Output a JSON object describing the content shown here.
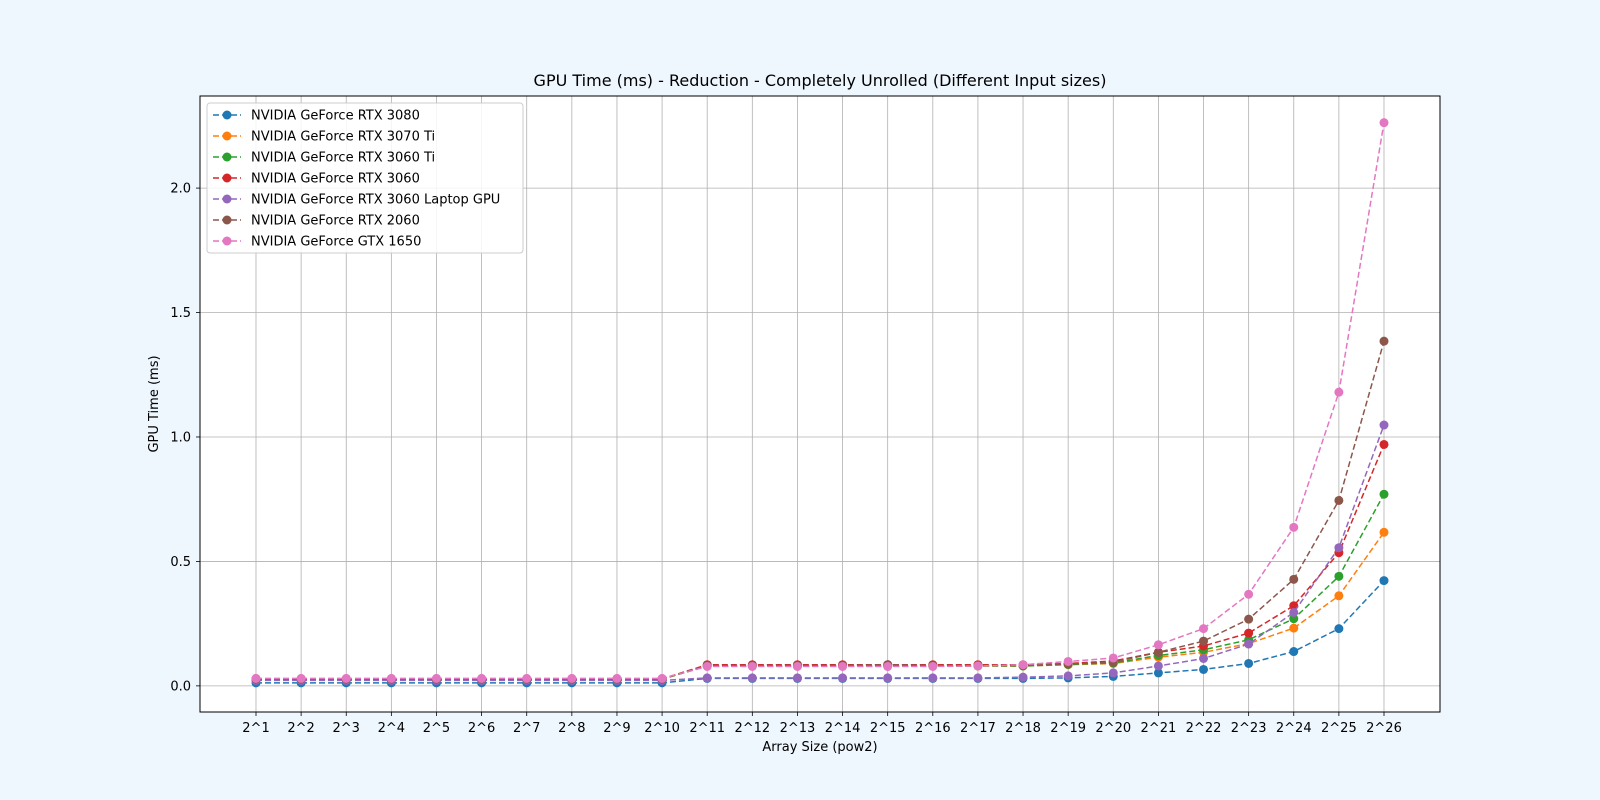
{
  "chart_data": {
    "type": "line",
    "title": "GPU Time (ms) - Reduction - Completely Unrolled (Different Input sizes)",
    "xlabel": "Array Size (pow2)",
    "ylabel": "GPU Time (ms)",
    "categories": [
      "2^1",
      "2^2",
      "2^3",
      "2^4",
      "2^5",
      "2^6",
      "2^7",
      "2^8",
      "2^9",
      "2^10",
      "2^11",
      "2^12",
      "2^13",
      "2^14",
      "2^15",
      "2^16",
      "2^17",
      "2^18",
      "2^19",
      "2^20",
      "2^21",
      "2^22",
      "2^23",
      "2^24",
      "2^25",
      "2^26"
    ],
    "ylim": [
      -0.105,
      2.37
    ],
    "yticks": [
      0.0,
      0.5,
      1.0,
      1.5,
      2.0
    ],
    "ytick_labels": [
      "0.0",
      "0.5",
      "1.0",
      "1.5",
      "2.0"
    ],
    "grid": true,
    "line_style": "dashed",
    "marker": "circle",
    "legend_position": "upper-left",
    "series": [
      {
        "name": "NVIDIA GeForce RTX 3080",
        "color": "#1f77b4",
        "values": [
          0.012,
          0.012,
          0.012,
          0.012,
          0.012,
          0.012,
          0.012,
          0.012,
          0.012,
          0.012,
          0.03,
          0.03,
          0.03,
          0.03,
          0.03,
          0.03,
          0.03,
          0.03,
          0.032,
          0.038,
          0.052,
          0.066,
          0.09,
          0.138,
          0.23,
          0.423
        ]
      },
      {
        "name": "NVIDIA GeForce RTX 3070 Ti",
        "color": "#ff7f0e",
        "values": [
          0.027,
          0.027,
          0.027,
          0.027,
          0.027,
          0.027,
          0.027,
          0.027,
          0.027,
          0.027,
          0.08,
          0.08,
          0.08,
          0.08,
          0.08,
          0.08,
          0.08,
          0.08,
          0.085,
          0.09,
          0.115,
          0.135,
          0.17,
          0.232,
          0.362,
          0.617
        ]
      },
      {
        "name": "NVIDIA GeForce RTX 3060 Ti",
        "color": "#2ca02c",
        "values": [
          0.027,
          0.027,
          0.027,
          0.027,
          0.027,
          0.027,
          0.027,
          0.027,
          0.027,
          0.027,
          0.08,
          0.08,
          0.08,
          0.08,
          0.08,
          0.08,
          0.08,
          0.08,
          0.086,
          0.092,
          0.122,
          0.145,
          0.185,
          0.27,
          0.44,
          0.77
        ]
      },
      {
        "name": "NVIDIA GeForce RTX 3060",
        "color": "#d62728",
        "values": [
          0.028,
          0.028,
          0.028,
          0.028,
          0.028,
          0.028,
          0.028,
          0.028,
          0.028,
          0.028,
          0.085,
          0.085,
          0.085,
          0.085,
          0.085,
          0.085,
          0.085,
          0.085,
          0.09,
          0.1,
          0.135,
          0.16,
          0.212,
          0.322,
          0.535,
          0.97
        ]
      },
      {
        "name": "NVIDIA GeForce RTX 3060 Laptop GPU",
        "color": "#9467bd",
        "values": [
          0.022,
          0.022,
          0.022,
          0.022,
          0.022,
          0.022,
          0.022,
          0.022,
          0.022,
          0.022,
          0.032,
          0.032,
          0.032,
          0.032,
          0.032,
          0.032,
          0.032,
          0.035,
          0.04,
          0.052,
          0.08,
          0.11,
          0.168,
          0.295,
          0.555,
          1.048
        ]
      },
      {
        "name": "NVIDIA GeForce RTX 2060",
        "color": "#8c564b",
        "values": [
          0.027,
          0.027,
          0.027,
          0.027,
          0.027,
          0.027,
          0.027,
          0.027,
          0.027,
          0.027,
          0.082,
          0.082,
          0.082,
          0.082,
          0.085,
          0.082,
          0.082,
          0.082,
          0.088,
          0.095,
          0.135,
          0.18,
          0.268,
          0.428,
          0.745,
          1.385
        ]
      },
      {
        "name": "NVIDIA GeForce GTX 1650",
        "color": "#e377c2",
        "values": [
          0.03,
          0.03,
          0.03,
          0.03,
          0.03,
          0.03,
          0.03,
          0.03,
          0.03,
          0.03,
          0.078,
          0.078,
          0.078,
          0.078,
          0.078,
          0.078,
          0.08,
          0.085,
          0.098,
          0.112,
          0.165,
          0.23,
          0.368,
          0.637,
          1.18,
          2.263
        ]
      }
    ]
  }
}
